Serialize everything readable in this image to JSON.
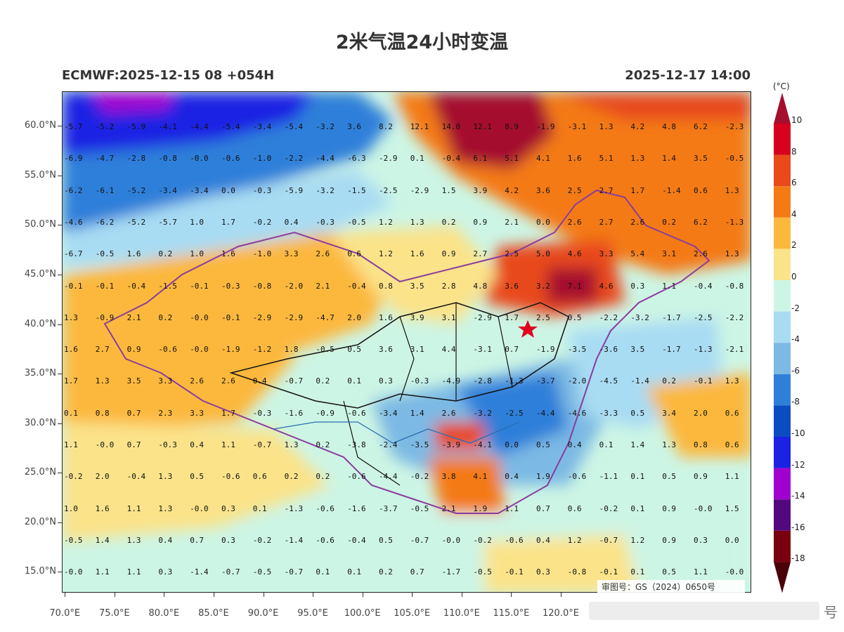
{
  "title": "2米气温24小时变温",
  "subtitle_left": "ECMWF:2025-12-15 08 +054H",
  "subtitle_right": "2025-12-17 14:00",
  "review_number": "审图号：GS（2024）0650号",
  "watermark_text": "号",
  "lat_labels": [
    "60.0°N",
    "55.0°N",
    "50.0°N",
    "45.0°N",
    "40.0°N",
    "35.0°N",
    "30.0°N",
    "25.0°N",
    "20.0°N",
    "15.0°N"
  ],
  "lon_labels": [
    "70.0°E",
    "75.0°E",
    "80.0°E",
    "85.0°E",
    "90.0°E",
    "95.0°E",
    "100.0°E",
    "105.0°E",
    "110.0°E",
    "115.0°E",
    "120.0°E"
  ],
  "colorbar": {
    "unit": "(°C)",
    "labels": [
      "10",
      "8",
      "6",
      "4",
      "2",
      "0",
      "-2",
      "-4",
      "-6",
      "-8",
      "-10",
      "-12",
      "-14",
      "-16",
      "-18"
    ],
    "colors": [
      "#a50f2d",
      "#d7001e",
      "#e84a1a",
      "#f47a16",
      "#fcb83c",
      "#fbe38a",
      "#cdf5e5",
      "#a8dcf3",
      "#7cb9e4",
      "#2f7fd9",
      "#0c4cc3",
      "#1b22e3",
      "#a000d0",
      "#53087e",
      "#7a0010",
      "#4a0008"
    ]
  },
  "grid_values": [
    {
      "lat": 60,
      "row": [
        "-5.7",
        "-5.2",
        "-5.9",
        "-4.1",
        "-4.4",
        "-5.4",
        "-3.4",
        "-5.4",
        "-3.2",
        "3.6",
        "8.2",
        "12.1",
        "14.0",
        "12.1",
        "8.9",
        "-1.9",
        "-3.1",
        "1.3",
        "4.2",
        "4.8",
        "6.2",
        "-2.3"
      ]
    },
    {
      "lat": 57.5,
      "row": [
        "-6.9",
        "-4.7",
        "-2.8",
        "-0.8",
        "-0.0",
        "-0.6",
        "-1.0",
        "-2.2",
        "-4.4",
        "-6.3",
        "-2.9",
        "0.1",
        "-0.4",
        "6.1",
        "5.1",
        "4.1",
        "1.6",
        "5.1",
        "1.3",
        "1.4",
        "3.5",
        "-0.5"
      ]
    },
    {
      "lat": 55,
      "row": [
        "-6.2",
        "-6.1",
        "-5.2",
        "-3.4",
        "-3.4",
        "0.0",
        "-0.3",
        "-5.9",
        "-3.2",
        "-1.5",
        "-2.5",
        "-2.9",
        "1.5",
        "3.9",
        "4.2",
        "3.6",
        "2.5",
        "2.7",
        "1.7",
        "-1.4",
        "0.6",
        "1.3"
      ]
    },
    {
      "lat": 52.5,
      "row": [
        "-4.6",
        "-6.2",
        "-5.2",
        "-5.7",
        "1.0",
        "1.7",
        "-0.2",
        "0.4",
        "-0.3",
        "-0.5",
        "1.2",
        "1.3",
        "0.2",
        "0.9",
        "2.1",
        "0.0",
        "2.6",
        "2.7",
        "2.6",
        "0.2",
        "6.2",
        "-1.3"
      ]
    },
    {
      "lat": 50,
      "row": [
        "-6.7",
        "-0.5",
        "1.6",
        "0.2",
        "1.0",
        "1.6",
        "-1.0",
        "3.3",
        "2.6",
        "0.6",
        "1.2",
        "1.6",
        "0.9",
        "2.7",
        "2.5",
        "5.0",
        "4.6",
        "3.3",
        "5.4",
        "3.1",
        "2.6",
        "1.3"
      ]
    },
    {
      "lat": 47.5,
      "row": [
        "-0.1",
        "-0.1",
        "-0.4",
        "-1.5",
        "-0.1",
        "-0.3",
        "-0.8",
        "-2.0",
        "2.1",
        "-0.4",
        "0.8",
        "3.5",
        "2.8",
        "4.8",
        "3.6",
        "3.2",
        "7.1",
        "4.6",
        "0.3",
        "1.1",
        "-0.4",
        "-0.8"
      ]
    },
    {
      "lat": 45,
      "row": [
        "1.3",
        "-0.9",
        "2.1",
        "0.2",
        "-0.0",
        "-0.1",
        "-2.9",
        "-2.9",
        "-4.7",
        "2.0",
        "1.6",
        "3.9",
        "3.1",
        "-2.9",
        "1.7",
        "2.5",
        "0.5",
        "-2.2",
        "-3.2",
        "-1.7",
        "-2.5",
        "-2.2"
      ]
    },
    {
      "lat": 42.5,
      "row": [
        "1.6",
        "2.7",
        "0.9",
        "-0.6",
        "-0.0",
        "-1.9",
        "-1.2",
        "1.8",
        "-0.5",
        "0.5",
        "3.6",
        "3.1",
        "4.4",
        "-3.1",
        "0.7",
        "-1.9",
        "-3.5",
        "-3.6",
        "3.5",
        "-1.7",
        "-1.3",
        "-2.1"
      ]
    },
    {
      "lat": 40,
      "row": [
        "1.7",
        "1.3",
        "3.5",
        "3.3",
        "2.6",
        "2.6",
        "0.4",
        "-0.7",
        "0.2",
        "0.1",
        "0.3",
        "-0.3",
        "-4.9",
        "-2.8",
        "-1.3",
        "-3.7",
        "-2.0",
        "-4.5",
        "-1.4",
        "0.2",
        "-0.1",
        "1.3"
      ]
    },
    {
      "lat": 37.5,
      "row": [
        "0.1",
        "0.8",
        "0.7",
        "2.3",
        "3.3",
        "1.7",
        "-0.3",
        "-1.6",
        "-0.9",
        "-0.6",
        "-3.4",
        "1.4",
        "2.6",
        "-3.2",
        "-2.5",
        "-4.4",
        "-4.6",
        "-3.3",
        "0.5",
        "3.4",
        "2.0",
        "0.6"
      ]
    },
    {
      "lat": 35,
      "row": [
        "1.1",
        "-0.0",
        "0.7",
        "-0.3",
        "0.4",
        "1.1",
        "-0.7",
        "1.3",
        "0.2",
        "-3.8",
        "-2.4",
        "-3.5",
        "-3.9",
        "-4.1",
        "0.0",
        "0.5",
        "0.4",
        "0.1",
        "1.4",
        "1.3",
        "0.8",
        "0.6"
      ]
    },
    {
      "lat": 32.5,
      "row": [
        "-0.2",
        "2.0",
        "-0.4",
        "1.3",
        "0.5",
        "-0.6",
        "0.6",
        "0.2",
        "0.2",
        "-0.6",
        "-4.4",
        "-0.2",
        "3.8",
        "4.1",
        "0.4",
        "1.9",
        "-0.6",
        "-1.1",
        "0.1",
        "0.5",
        "0.9",
        "1.1"
      ]
    },
    {
      "lat": 30,
      "row": [
        "1.0",
        "1.6",
        "1.1",
        "1.3",
        "-0.0",
        "0.3",
        "0.1",
        "-1.3",
        "-0.6",
        "-1.6",
        "-3.7",
        "-0.5",
        "2.1",
        "1.9",
        "1.1",
        "0.7",
        "0.6",
        "-0.2",
        "0.1",
        "0.9",
        "-0.0",
        "1.5"
      ]
    },
    {
      "lat": 27.5,
      "row": [
        "-0.5",
        "1.4",
        "1.3",
        "0.4",
        "0.7",
        "0.3",
        "-0.2",
        "-1.4",
        "-0.6",
        "-0.4",
        "0.5",
        "-0.7",
        "-0.0",
        "-0.2",
        "-0.6",
        "0.4",
        "1.2",
        "-0.7",
        "1.2",
        "0.9",
        "0.3",
        "0.0"
      ]
    },
    {
      "lat": 25,
      "row": [
        "-0.0",
        "1.1",
        "1.1",
        "0.3",
        "-1.4",
        "-0.7",
        "-0.5",
        "-0.7",
        "0.1",
        "0.1",
        "0.2",
        "0.7",
        "-1.7",
        "-0.5",
        "-0.1",
        "0.3",
        "-0.8",
        "-0.1",
        "0.1",
        "0.5",
        "1.1",
        "-0.0"
      ]
    }
  ]
}
